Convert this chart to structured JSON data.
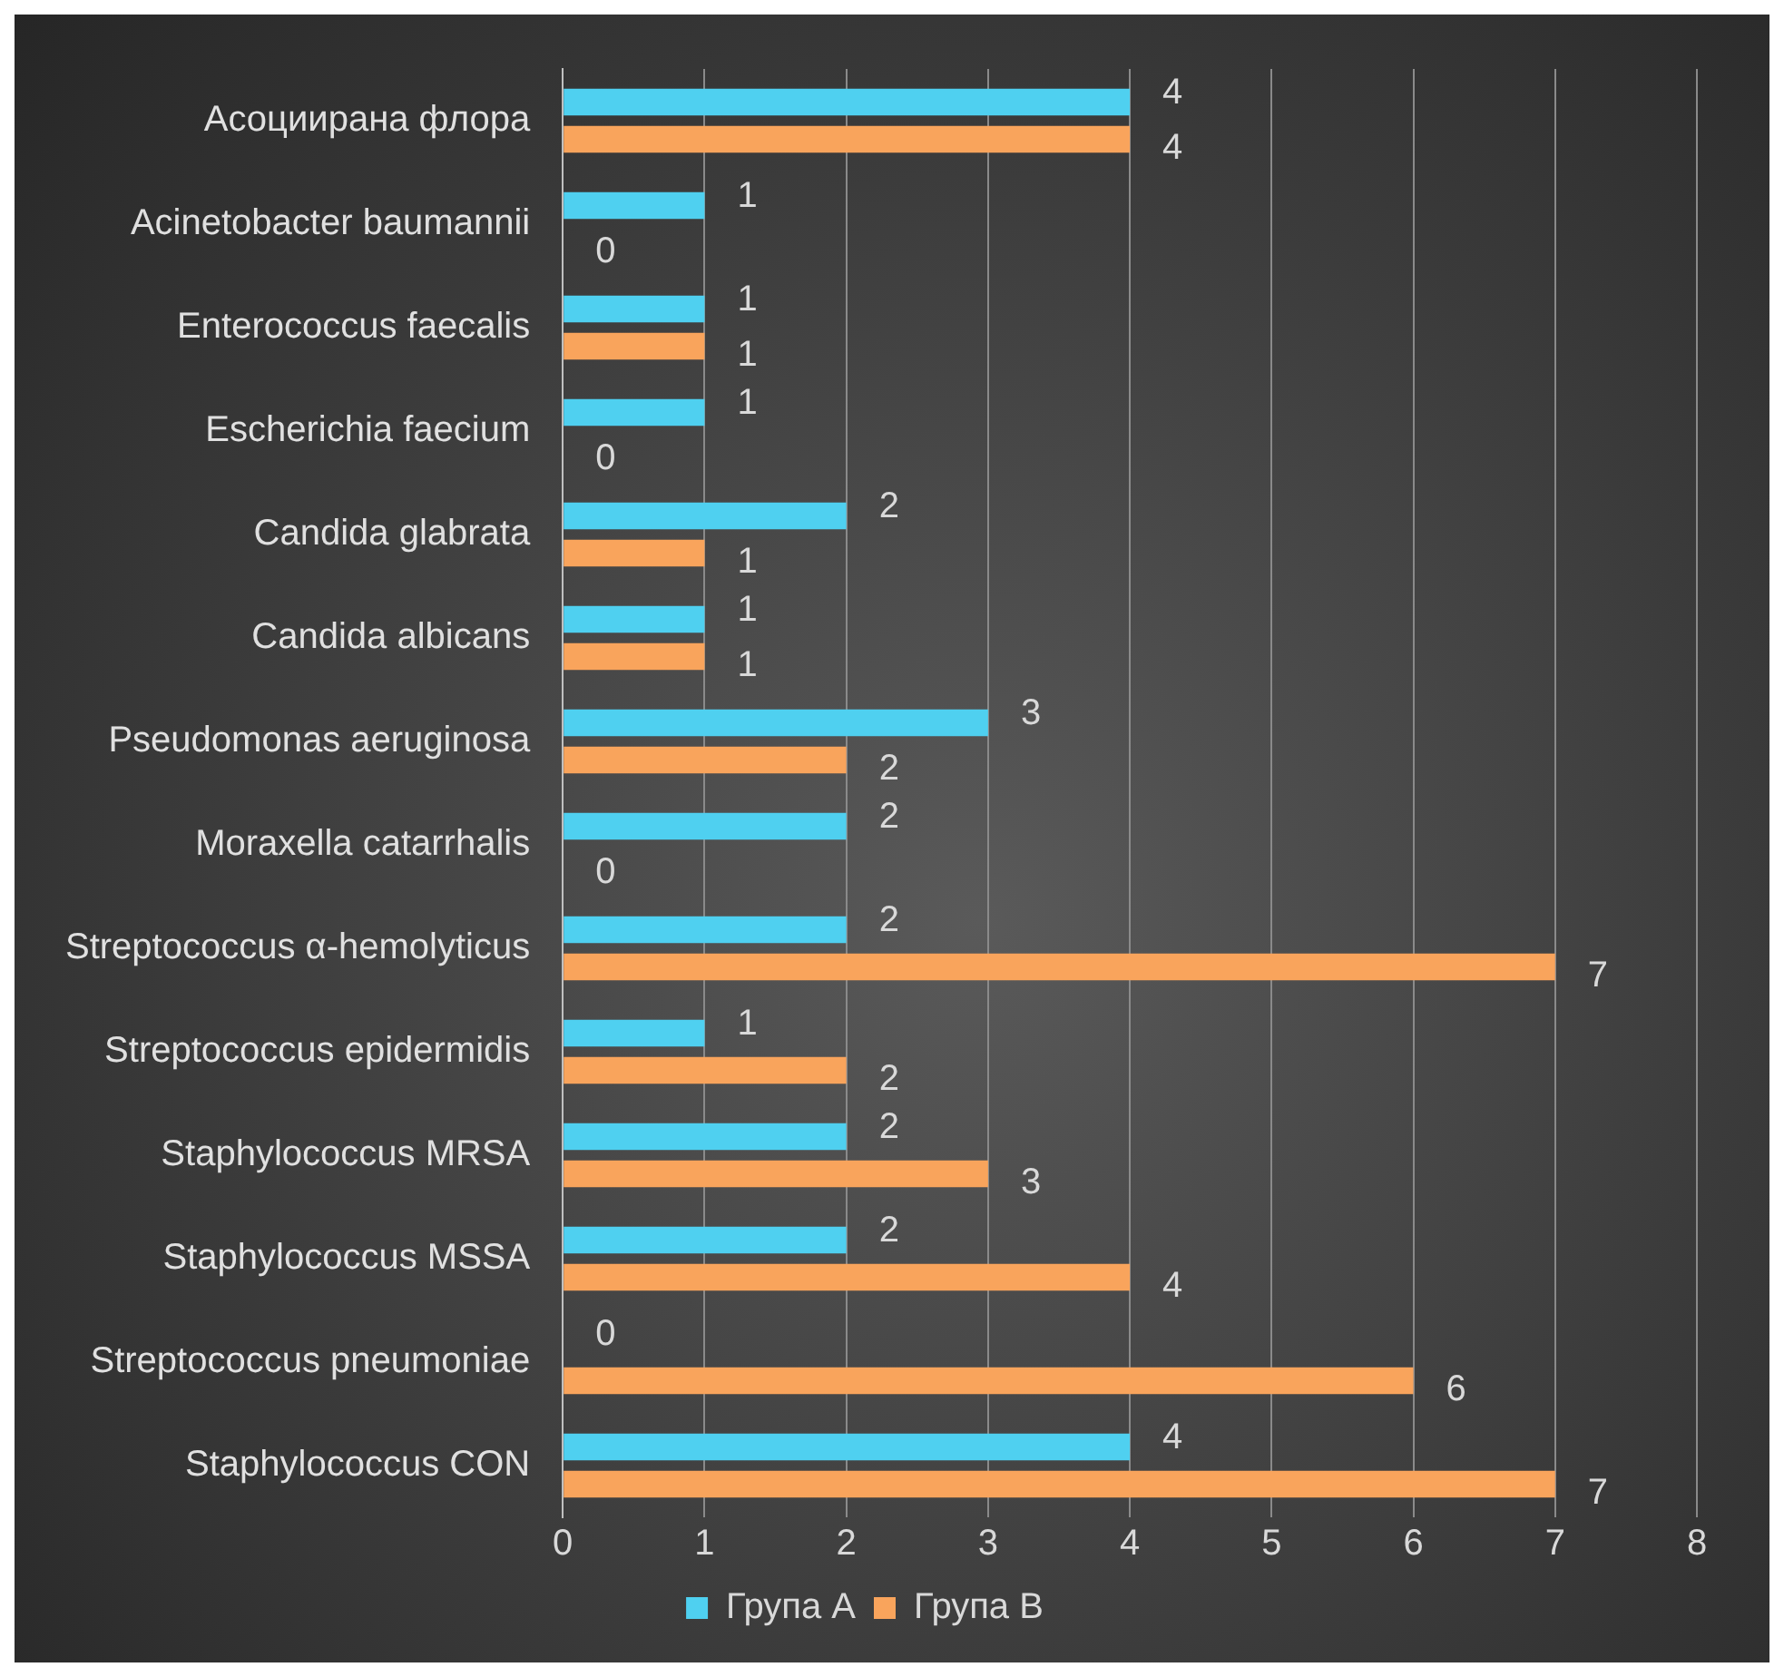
{
  "chart_data": {
    "type": "bar",
    "orientation": "horizontal",
    "categories": [
      "Асоциирана флора",
      "Acinetobacter baumannii",
      "Enterococcus faecalis",
      "Escherichia faecium",
      "Candida glabrata",
      "Candida albicans",
      "Pseudomonas aeruginosa",
      "Moraxella catarrhalis",
      "Streptococcus α-hemolyticus",
      "Streptococcus epidermidis",
      "Staphylococcus MRSA",
      "Staphylococcus MSSA",
      "Streptococcus pneumoniae",
      "Staphylococcus CON"
    ],
    "series": [
      {
        "name": "Група A",
        "color": "#4fd0f0",
        "values": [
          4,
          1,
          1,
          1,
          2,
          1,
          3,
          2,
          2,
          1,
          2,
          2,
          0,
          4
        ]
      },
      {
        "name": "Група B",
        "color": "#f9a45c",
        "values": [
          4,
          0,
          1,
          0,
          1,
          1,
          2,
          0,
          7,
          2,
          3,
          4,
          6,
          7
        ]
      }
    ],
    "xlim": [
      0,
      8
    ],
    "xticks": [
      0,
      1,
      2,
      3,
      4,
      5,
      6,
      7,
      8
    ],
    "grid": "x",
    "legend": "bottom",
    "data_labels": true
  }
}
